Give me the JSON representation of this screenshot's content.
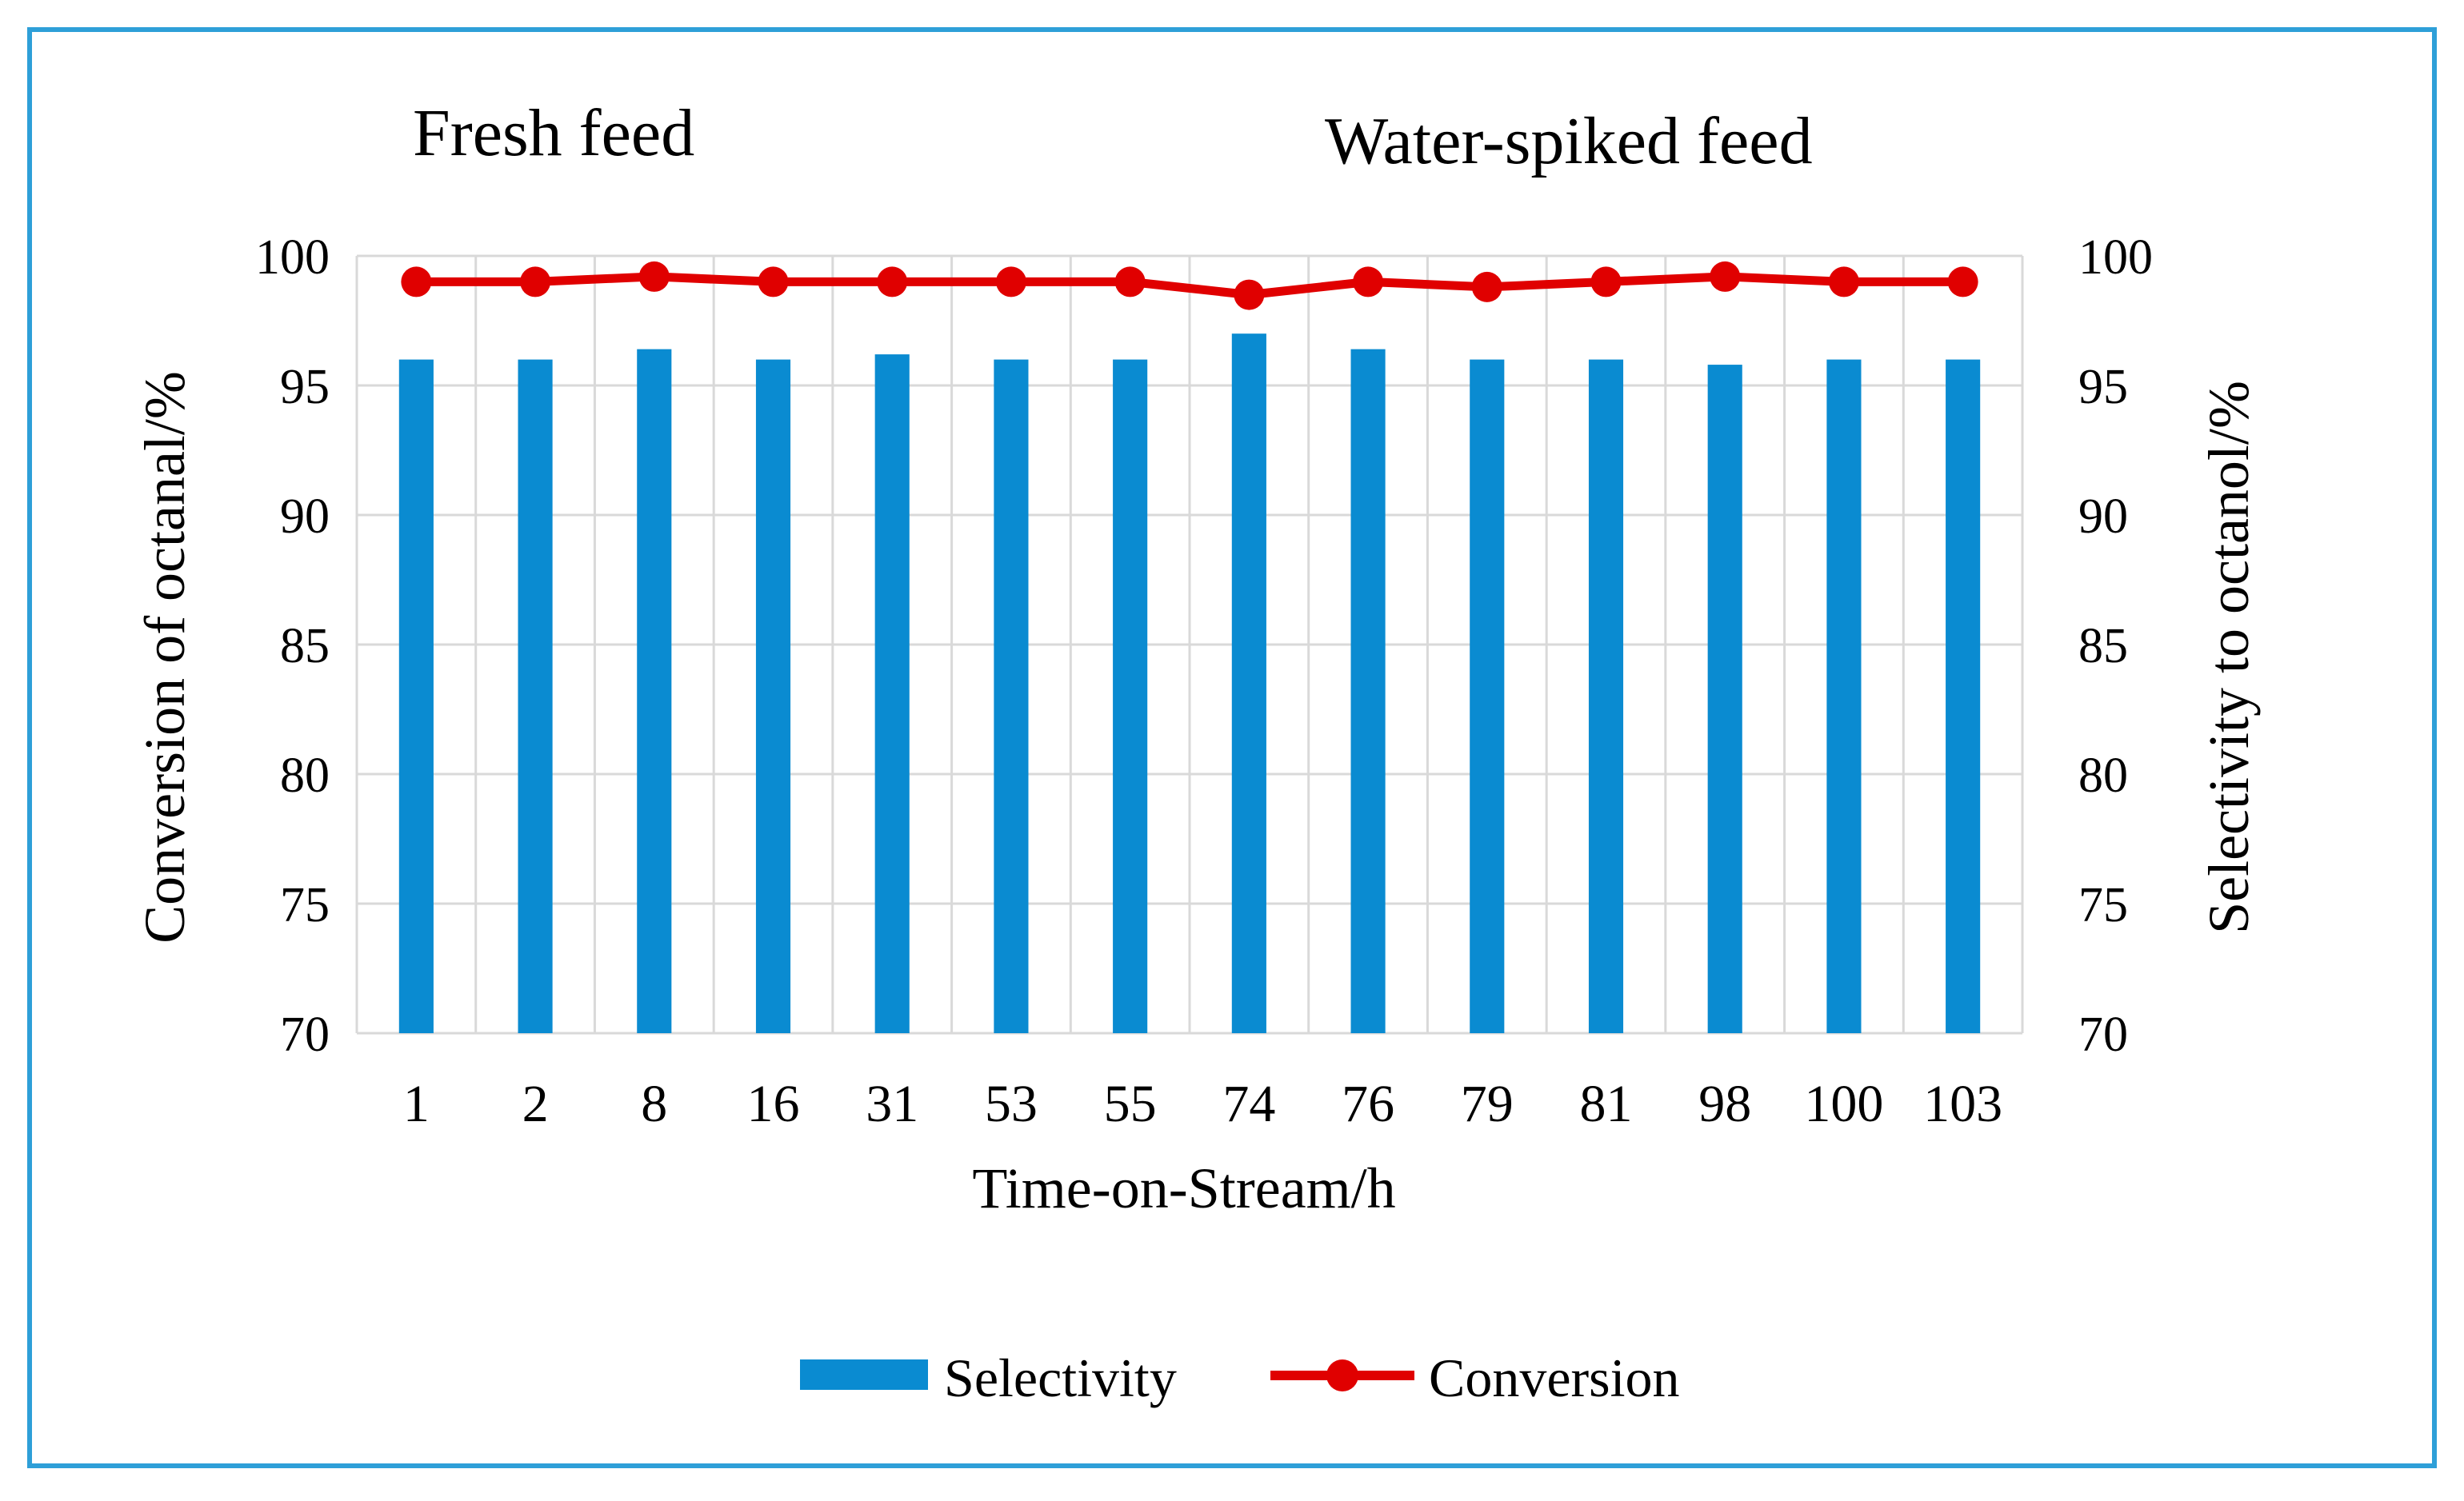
{
  "chart_data": {
    "type": "bar+line",
    "annotations": [
      "Fresh feed",
      "Water-spiked feed"
    ],
    "categories": [
      "1",
      "2",
      "8",
      "16",
      "31",
      "53",
      "55",
      "74",
      "76",
      "79",
      "81",
      "98",
      "100",
      "103"
    ],
    "series": [
      {
        "name": "Selectivity",
        "type": "bar",
        "axis": "right",
        "color": "#0A8BD1",
        "values": [
          96.0,
          96.0,
          96.4,
          96.0,
          96.2,
          96.0,
          96.0,
          97.0,
          96.4,
          96.0,
          96.0,
          95.8,
          96.0,
          96.0
        ]
      },
      {
        "name": "Conversion",
        "type": "line",
        "axis": "left",
        "color": "#E00000",
        "values": [
          99.0,
          99.0,
          99.2,
          99.0,
          99.0,
          99.0,
          99.0,
          98.5,
          99.0,
          98.8,
          99.0,
          99.2,
          99.0,
          99.0
        ]
      }
    ],
    "xlabel": "Time-on-Stream/h",
    "ylabel_left": "Conversion of octanal/%",
    "ylabel_right": "Selectivity to octanol/%",
    "ylim_left": [
      70,
      100
    ],
    "ylim_right": [
      70,
      100
    ],
    "yticks": [
      "70",
      "75",
      "80",
      "85",
      "90",
      "95",
      "100"
    ],
    "grid": true,
    "legend_position": "bottom-center"
  }
}
